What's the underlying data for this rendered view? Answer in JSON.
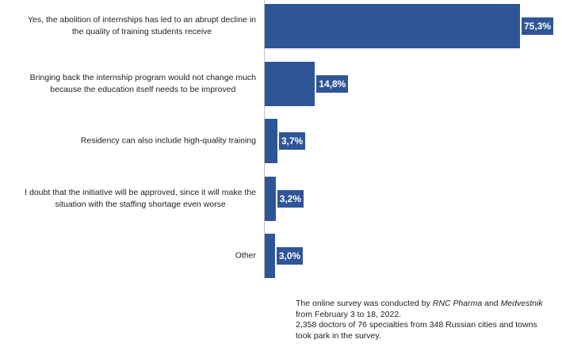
{
  "chart_data": {
    "type": "bar",
    "orientation": "horizontal",
    "categories": [
      "Yes, the abolition of internships has led to an abrupt decline in\nthe quality of training students receive",
      "Bringing back the internship program would not change much\nbecause the education itself needs to be improved",
      "Residency can also include high-quality training",
      "I doubt that the initiative will be approved, since it will make the\nsituation with the staffing shortage even worse",
      "Other"
    ],
    "values": [
      75.3,
      14.8,
      3.7,
      3.2,
      3.0
    ],
    "value_labels": [
      "75,3%",
      "14,8%",
      "3,7%",
      "3,2%",
      "3,0%"
    ],
    "color": "#2f5597",
    "note": [
      "The online survey was conducted by ",
      "RNC Pharma",
      " and ",
      "Medvestnik",
      "\nfrom February 3 to 18, 2022.\n2,358 doctors of 76 specialties from 348 Russian cities and towns\ntook park in the survey."
    ]
  }
}
